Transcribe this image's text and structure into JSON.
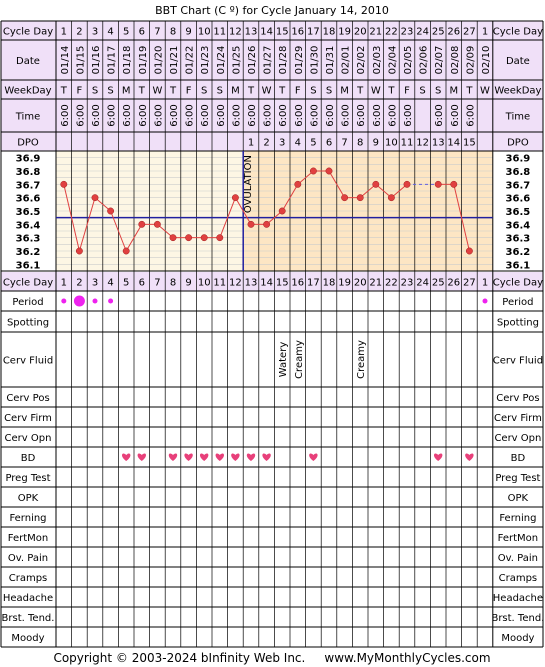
{
  "title": "BBT Chart (C º) for Cycle January 14, 2010",
  "footer": "Copyright © 2003-2024 bInfinity Web Inc.     www.MyMonthlyCycles.com",
  "ovulation_label": "OVULATION",
  "colors": {
    "header_bg": "#f0e0f8",
    "pre_ov_bg": "#fdf6e4",
    "post_ov_bg": "#fde6c4",
    "temp_line": "#e04040",
    "coverline": "#2020a0",
    "ovulation_line": "#2020a0",
    "period": "#ee22ee",
    "bd_heart": "#e8407a",
    "grid": "#000000",
    "minor_grid": "#cccccc"
  },
  "rows": {
    "cycle_day": "Cycle Day",
    "date": "Date",
    "weekday": "WeekDay",
    "time": "Time",
    "dpo": "DPO",
    "period": "Period",
    "spotting": "Spotting",
    "cerv_fluid": "Cerv Fluid",
    "cerv_pos": "Cerv Pos",
    "cerv_firm": "Cerv Firm",
    "cerv_opn": "Cerv Opn",
    "bd": "BD",
    "preg_test": "Preg Test",
    "opk": "OPK",
    "ferning": "Ferning",
    "fertmon": "FertMon",
    "ov_pain": "Ov. Pain",
    "cramps": "Cramps",
    "headache": "Headache",
    "brst_tend": "Brst. Tend.",
    "moody": "Moody"
  },
  "cycle_days": [
    "1",
    "2",
    "3",
    "4",
    "5",
    "6",
    "7",
    "8",
    "9",
    "10",
    "11",
    "12",
    "13",
    "14",
    "15",
    "16",
    "17",
    "18",
    "19",
    "20",
    "21",
    "22",
    "23",
    "24",
    "25",
    "26",
    "27",
    "1"
  ],
  "dates": [
    "01/14",
    "01/15",
    "01/16",
    "01/17",
    "01/18",
    "01/19",
    "01/20",
    "01/21",
    "01/22",
    "01/23",
    "01/24",
    "01/25",
    "01/26",
    "01/27",
    "01/28",
    "01/29",
    "01/30",
    "01/31",
    "02/01",
    "02/02",
    "02/03",
    "02/04",
    "02/05",
    "02/06",
    "02/07",
    "02/08",
    "02/09",
    "02/10"
  ],
  "weekdays": [
    "T",
    "F",
    "S",
    "S",
    "M",
    "T",
    "W",
    "T",
    "F",
    "S",
    "S",
    "M",
    "T",
    "W",
    "T",
    "F",
    "S",
    "S",
    "M",
    "T",
    "W",
    "T",
    "F",
    "S",
    "S",
    "M",
    "T",
    "W"
  ],
  "times": [
    "6:00",
    "6:00",
    "6:00",
    "6:00",
    "6:00",
    "6:00",
    "6:00",
    "6:00",
    "6:00",
    "6:00",
    "6:00",
    "6:00",
    "6:00",
    "6:00",
    "6:00",
    "6:00",
    "6:00",
    "6:00",
    "6:00",
    "6:00",
    "6:00",
    "6:00",
    "6:00",
    "",
    "6:00",
    "6:00",
    "6:00",
    ""
  ],
  "dpo": [
    "",
    "",
    "",
    "",
    "",
    "",
    "",
    "",
    "",
    "",
    "",
    "",
    "1",
    "2",
    "3",
    "4",
    "5",
    "6",
    "7",
    "8",
    "9",
    "10",
    "11",
    "12",
    "13",
    "14",
    "15",
    ""
  ],
  "cerv_fluid": [
    "",
    "",
    "",
    "",
    "",
    "",
    "",
    "",
    "",
    "",
    "",
    "",
    "",
    "",
    "Watery",
    "Creamy",
    "",
    "",
    "",
    "Creamy",
    "",
    "",
    "",
    "",
    "",
    "",
    "",
    ""
  ],
  "chart_data": {
    "type": "line",
    "x": [
      1,
      2,
      3,
      4,
      5,
      6,
      7,
      8,
      9,
      10,
      11,
      12,
      13,
      14,
      15,
      16,
      17,
      18,
      19,
      20,
      21,
      22,
      23,
      24,
      25,
      26,
      27,
      28
    ],
    "temps": [
      36.7,
      36.2,
      36.6,
      36.5,
      36.2,
      36.4,
      36.4,
      36.3,
      36.3,
      36.3,
      36.3,
      36.6,
      36.4,
      36.4,
      36.5,
      36.7,
      36.8,
      36.8,
      36.6,
      36.6,
      36.7,
      36.6,
      36.7,
      null,
      36.7,
      36.7,
      36.2,
      null
    ],
    "gap_dashed": [
      23,
      25
    ],
    "yticks": [
      "36.9",
      "36.8",
      "36.7",
      "36.6",
      "36.5",
      "36.4",
      "36.3",
      "36.2",
      "36.1"
    ],
    "ylim": [
      36.05,
      36.95
    ],
    "coverline": 36.45,
    "ovulation_after_day": 12,
    "period": [
      2,
      3,
      2,
      2,
      0,
      0,
      0,
      0,
      0,
      0,
      0,
      0,
      0,
      0,
      0,
      0,
      0,
      0,
      0,
      0,
      0,
      0,
      0,
      0,
      0,
      0,
      0,
      2
    ],
    "bd": [
      0,
      0,
      0,
      0,
      1,
      1,
      0,
      1,
      1,
      1,
      1,
      1,
      1,
      1,
      0,
      0,
      1,
      0,
      0,
      0,
      0,
      0,
      0,
      0,
      1,
      0,
      1,
      0
    ]
  }
}
